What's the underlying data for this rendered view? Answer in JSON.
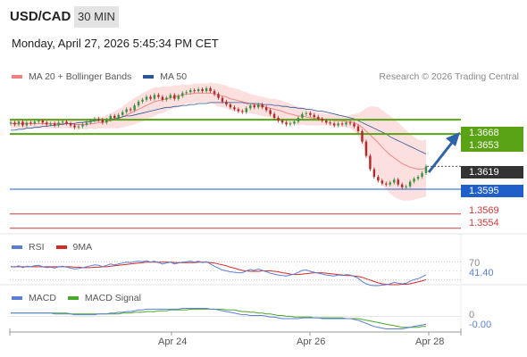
{
  "header": {
    "symbol": "USD/CAD",
    "timeframe": "30 MIN",
    "datetime": "Monday, April 27, 2026 5:45:34 PM CET",
    "credit": "Research © 2026 Trading Central"
  },
  "colors": {
    "bollinger": "#f08080",
    "band_fill": "#fbd9d9",
    "ma50": "#2b5797",
    "resistance": "#59a314",
    "support": "#1f5fc9",
    "target": "#d43a3a",
    "candle_up": "#3f8f3f",
    "candle_down": "#b02a2a",
    "rsi": "#5b7fd6",
    "rsi_ma": "#d42a2a",
    "macd": "#5b7fd6",
    "macd_signal": "#4aa82a",
    "last_price_tag": "#333333",
    "arrow": "#2e63a8"
  },
  "chart_data": [
    {
      "type": "candlestick",
      "legend": [
        {
          "name": "MA 20 + Bollinger Bands",
          "color": "#f08080"
        },
        {
          "name": "MA 50",
          "color": "#2b5797"
        }
      ],
      "ylim": [
        1.355,
        1.37
      ],
      "last_price": "1.3619",
      "levels": [
        {
          "value": 1.3668,
          "label": "1.3668",
          "kind": "resistance"
        },
        {
          "value": 1.3653,
          "label": "1.3653",
          "kind": "resistance"
        },
        {
          "value": 1.3595,
          "label": "1.3595",
          "kind": "support"
        },
        {
          "value": 1.3569,
          "label": "1.3569",
          "kind": "target"
        },
        {
          "value": 1.3554,
          "label": "1.3554",
          "kind": "target"
        }
      ],
      "close": [
        1.3665,
        1.3663,
        1.3666,
        1.3662,
        1.3665,
        1.3664,
        1.3666,
        1.3667,
        1.3665,
        1.3663,
        1.3664,
        1.3662,
        1.3665,
        1.3666,
        1.3664,
        1.3662,
        1.366,
        1.3661,
        1.3663,
        1.3665,
        1.3667,
        1.3669,
        1.3668,
        1.3665,
        1.3668,
        1.3672,
        1.367,
        1.3673,
        1.3676,
        1.3679,
        1.3678,
        1.3683,
        1.3687,
        1.3689,
        1.3692,
        1.369,
        1.3694,
        1.3692,
        1.3689,
        1.3691,
        1.3694,
        1.369,
        1.3693,
        1.3696,
        1.3697,
        1.3699,
        1.3698,
        1.37,
        1.3698,
        1.3701,
        1.3698,
        1.3695,
        1.3691,
        1.3687,
        1.3684,
        1.3681,
        1.3679,
        1.3677,
        1.3676,
        1.368,
        1.3683,
        1.3681,
        1.3684,
        1.3681,
        1.3678,
        1.3674,
        1.367,
        1.3667,
        1.3665,
        1.3663,
        1.3664,
        1.3666,
        1.367,
        1.3674,
        1.3675,
        1.3673,
        1.3671,
        1.3669,
        1.3667,
        1.3665,
        1.3664,
        1.3662,
        1.3664,
        1.3663,
        1.3665,
        1.3664,
        1.3661,
        1.3656,
        1.3645,
        1.363,
        1.3616,
        1.3608,
        1.3604,
        1.3601,
        1.36,
        1.3602,
        1.3605,
        1.36,
        1.3597,
        1.3598,
        1.3603,
        1.3606,
        1.3608,
        1.3612,
        1.3619
      ],
      "bb_mid": [
        1.3664,
        1.3664,
        1.3664,
        1.3664,
        1.3664,
        1.3664,
        1.3664,
        1.3664,
        1.3664,
        1.3664,
        1.3664,
        1.3664,
        1.3664,
        1.3664,
        1.3664,
        1.3664,
        1.3663,
        1.3663,
        1.3663,
        1.3663,
        1.3664,
        1.3664,
        1.3665,
        1.3665,
        1.3666,
        1.3667,
        1.3668,
        1.3669,
        1.3671,
        1.3673,
        1.3675,
        1.3677,
        1.3679,
        1.3681,
        1.3683,
        1.3685,
        1.3687,
        1.3688,
        1.3689,
        1.369,
        1.3691,
        1.3692,
        1.3693,
        1.3694,
        1.3695,
        1.3695,
        1.3696,
        1.3696,
        1.3696,
        1.3696,
        1.3696,
        1.3695,
        1.3694,
        1.3693,
        1.3692,
        1.369,
        1.3689,
        1.3688,
        1.3687,
        1.3686,
        1.3685,
        1.3684,
        1.3683,
        1.3682,
        1.3681,
        1.368,
        1.3679,
        1.3678,
        1.3677,
        1.3675,
        1.3674,
        1.3673,
        1.3672,
        1.3672,
        1.3671,
        1.367,
        1.367,
        1.3669,
        1.3669,
        1.3668,
        1.3668,
        1.3667,
        1.3667,
        1.3667,
        1.3666,
        1.3666,
        1.3665,
        1.3663,
        1.366,
        1.3656,
        1.3652,
        1.3648,
        1.3644,
        1.3639,
        1.3635,
        1.3631,
        1.3628,
        1.3625,
        1.3622,
        1.362,
        1.3618,
        1.3617,
        1.3616,
        1.3616,
        1.3617
      ],
      "bb_width": [
        0.0005,
        0.0005,
        0.0005,
        0.0005,
        0.0005,
        0.0005,
        0.0005,
        0.0005,
        0.0005,
        0.0005,
        0.0005,
        0.0005,
        0.0005,
        0.0005,
        0.0005,
        0.0005,
        0.0005,
        0.0005,
        0.0005,
        0.0005,
        0.0005,
        0.0006,
        0.0006,
        0.0006,
        0.0007,
        0.0008,
        0.0009,
        0.001,
        0.0011,
        0.0012,
        0.0013,
        0.0014,
        0.0014,
        0.0015,
        0.0015,
        0.0015,
        0.0015,
        0.0014,
        0.0014,
        0.0013,
        0.0012,
        0.0012,
        0.0011,
        0.0011,
        0.001,
        0.001,
        0.001,
        0.001,
        0.001,
        0.001,
        0.0011,
        0.0011,
        0.0012,
        0.0012,
        0.0012,
        0.0012,
        0.0012,
        0.0012,
        0.0011,
        0.0011,
        0.001,
        0.001,
        0.001,
        0.001,
        0.001,
        0.001,
        0.0011,
        0.0011,
        0.0011,
        0.0011,
        0.0011,
        0.001,
        0.001,
        0.0009,
        0.0009,
        0.0008,
        0.0008,
        0.0007,
        0.0007,
        0.0006,
        0.0006,
        0.0006,
        0.0006,
        0.0006,
        0.0006,
        0.0007,
        0.0009,
        0.0012,
        0.0017,
        0.0024,
        0.003,
        0.0034,
        0.0037,
        0.0039,
        0.004,
        0.0041,
        0.0041,
        0.004,
        0.0039,
        0.0037,
        0.0035,
        0.0033,
        0.0031,
        0.003,
        0.003
      ],
      "ma50": [
        1.3657,
        1.3657,
        1.3658,
        1.3658,
        1.3659,
        1.3659,
        1.366,
        1.366,
        1.3661,
        1.3661,
        1.3662,
        1.3662,
        1.3663,
        1.3663,
        1.3664,
        1.3664,
        1.3664,
        1.3665,
        1.3665,
        1.3666,
        1.3666,
        1.3667,
        1.3667,
        1.3668,
        1.3668,
        1.3669,
        1.3669,
        1.367,
        1.3671,
        1.3672,
        1.3672,
        1.3673,
        1.3674,
        1.3675,
        1.3676,
        1.3677,
        1.3678,
        1.3679,
        1.368,
        1.3681,
        1.3681,
        1.3682,
        1.3682,
        1.3683,
        1.3683,
        1.3684,
        1.3684,
        1.3685,
        1.3685,
        1.3685,
        1.3686,
        1.3686,
        1.3686,
        1.3686,
        1.3686,
        1.3686,
        1.3686,
        1.3686,
        1.3686,
        1.3685,
        1.3685,
        1.3685,
        1.3685,
        1.3684,
        1.3684,
        1.3684,
        1.3683,
        1.3683,
        1.3682,
        1.3682,
        1.3681,
        1.3681,
        1.368,
        1.368,
        1.3679,
        1.3679,
        1.3678,
        1.3677,
        1.3677,
        1.3676,
        1.3675,
        1.3674,
        1.3673,
        1.3672,
        1.3671,
        1.367,
        1.3669,
        1.3667,
        1.3665,
        1.3663,
        1.3661,
        1.3659,
        1.3657,
        1.3655,
        1.3653,
        1.365,
        1.3648,
        1.3646,
        1.3644,
        1.3642,
        1.364,
        1.3638,
        1.3636,
        1.3634,
        1.3632
      ]
    },
    {
      "type": "line",
      "legend": [
        {
          "name": "RSI",
          "color": "#5b7fd6"
        },
        {
          "name": "9MA",
          "color": "#d42a2a"
        }
      ],
      "levels": [
        "70",
        "30"
      ],
      "ylim": [
        20,
        80
      ],
      "value_label": "41.40",
      "rsi": [
        60,
        58,
        61,
        57,
        60,
        59,
        61,
        62,
        59,
        57,
        58,
        56,
        59,
        60,
        58,
        56,
        54,
        55,
        57,
        59,
        61,
        63,
        62,
        59,
        62,
        65,
        63,
        65,
        67,
        69,
        68,
        70,
        71,
        70,
        72,
        69,
        71,
        68,
        65,
        67,
        69,
        65,
        67,
        69,
        70,
        71,
        69,
        71,
        68,
        70,
        65,
        60,
        56,
        52,
        50,
        48,
        47,
        46,
        46,
        50,
        53,
        51,
        54,
        51,
        48,
        45,
        43,
        41,
        40,
        39,
        41,
        43,
        47,
        51,
        52,
        49,
        47,
        45,
        43,
        41,
        40,
        39,
        41,
        40,
        42,
        41,
        38,
        34,
        27,
        22,
        19,
        18,
        18,
        19,
        20,
        22,
        25,
        23,
        22,
        23,
        28,
        31,
        33,
        37,
        41.4
      ],
      "rsi_ma": [
        59,
        59,
        59,
        59,
        59,
        59,
        59,
        59,
        59,
        59,
        59,
        59,
        59,
        59,
        59,
        59,
        58,
        58,
        57,
        57,
        57,
        58,
        58,
        59,
        59,
        60,
        61,
        62,
        63,
        64,
        65,
        66,
        67,
        68,
        69,
        69,
        69,
        69,
        69,
        69,
        69,
        68,
        68,
        68,
        68,
        68,
        68,
        69,
        69,
        69,
        68,
        67,
        65,
        63,
        61,
        58,
        56,
        53,
        51,
        50,
        49,
        49,
        49,
        50,
        50,
        50,
        49,
        48,
        46,
        45,
        43,
        42,
        42,
        43,
        44,
        45,
        46,
        46,
        46,
        45,
        44,
        43,
        42,
        41,
        40,
        40,
        39,
        38,
        36,
        33,
        30,
        27,
        24,
        22,
        21,
        20,
        20,
        20,
        21,
        21,
        22,
        24,
        26,
        28,
        31
      ]
    },
    {
      "type": "line",
      "legend": [
        {
          "name": "MACD",
          "color": "#5b7fd6"
        },
        {
          "name": "MACD Signal",
          "color": "#4aa82a"
        }
      ],
      "zero_label": "0",
      "value_label": "-0.00",
      "ylim": [
        -0.002,
        0.0014
      ],
      "macd": [
        0.0004,
        0.0004,
        0.0004,
        0.0004,
        0.0004,
        0.0004,
        0.0004,
        0.0004,
        0.0004,
        0.0004,
        0.0004,
        0.0003,
        0.0003,
        0.0003,
        0.0003,
        0.0003,
        0.0002,
        0.0002,
        0.0002,
        0.0002,
        0.0002,
        0.0002,
        0.0003,
        0.0003,
        0.0003,
        0.0004,
        0.0004,
        0.0005,
        0.0005,
        0.0006,
        0.0006,
        0.0007,
        0.0008,
        0.0008,
        0.0009,
        0.0009,
        0.0009,
        0.0009,
        0.0009,
        0.0009,
        0.0009,
        0.0009,
        0.0009,
        0.001,
        0.001,
        0.001,
        0.001,
        0.001,
        0.001,
        0.001,
        0.0009,
        0.0009,
        0.0008,
        0.0007,
        0.0006,
        0.0005,
        0.0004,
        0.0003,
        0.0002,
        0.0002,
        0.0001,
        0.0001,
        0.0001,
        0.0001,
        0.0,
        -0.0001,
        -0.0001,
        -0.0002,
        -0.0003,
        -0.0003,
        -0.0003,
        -0.0003,
        -0.0003,
        -0.0002,
        -0.0002,
        -0.0002,
        -0.0002,
        -0.0002,
        -0.0003,
        -0.0003,
        -0.0003,
        -0.0003,
        -0.0003,
        -0.0003,
        -0.0003,
        -0.0003,
        -0.0004,
        -0.0005,
        -0.0007,
        -0.0009,
        -0.0011,
        -0.0013,
        -0.0014,
        -0.0015,
        -0.0016,
        -0.0016,
        -0.0016,
        -0.0016,
        -0.0016,
        -0.0015,
        -0.0014,
        -0.0013,
        -0.0012,
        -0.0011,
        -0.001
      ],
      "signal": [
        0.0004,
        0.0004,
        0.0004,
        0.0004,
        0.0004,
        0.0004,
        0.0004,
        0.0004,
        0.0004,
        0.0004,
        0.0004,
        0.0004,
        0.0004,
        0.0004,
        0.0004,
        0.0003,
        0.0003,
        0.0003,
        0.0003,
        0.0003,
        0.0003,
        0.0003,
        0.0003,
        0.0003,
        0.0003,
        0.0003,
        0.0003,
        0.0003,
        0.0004,
        0.0004,
        0.0004,
        0.0005,
        0.0005,
        0.0005,
        0.0006,
        0.0006,
        0.0006,
        0.0007,
        0.0007,
        0.0007,
        0.0008,
        0.0008,
        0.0008,
        0.0008,
        0.0008,
        0.0009,
        0.0009,
        0.0009,
        0.0009,
        0.0009,
        0.0009,
        0.0009,
        0.0009,
        0.0009,
        0.0008,
        0.0008,
        0.0008,
        0.0007,
        0.0006,
        0.0006,
        0.0005,
        0.0005,
        0.0004,
        0.0004,
        0.0003,
        0.0003,
        0.0002,
        0.0001,
        0.0001,
        0.0,
        0.0,
        -0.0001,
        -0.0001,
        -0.0001,
        -0.0001,
        -0.0001,
        -0.0002,
        -0.0002,
        -0.0002,
        -0.0002,
        -0.0002,
        -0.0002,
        -0.0002,
        -0.0002,
        -0.0003,
        -0.0003,
        -0.0003,
        -0.0003,
        -0.0004,
        -0.0005,
        -0.0006,
        -0.0007,
        -0.0008,
        -0.0009,
        -0.001,
        -0.0011,
        -0.0012,
        -0.0013,
        -0.0014,
        -0.0014,
        -0.0014,
        -0.0014,
        -0.0014,
        -0.0013,
        -0.0013
      ]
    }
  ],
  "x_labels": [
    "Apr 24",
    "Apr 26",
    "Apr 28"
  ]
}
